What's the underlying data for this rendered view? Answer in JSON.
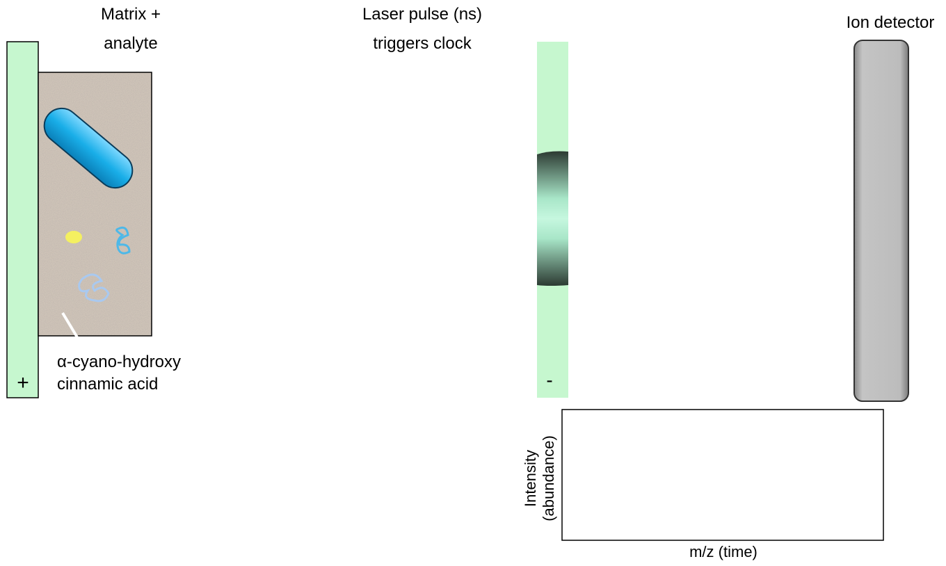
{
  "sample": {
    "title_lines": [
      "Matrix +",
      "analyte"
    ],
    "matrix_lines": [
      "α-cyano-hydroxy",
      "cinnamic acid"
    ],
    "anode_sign": "+"
  },
  "laser": {
    "title_lines": [
      "Laser pulse (ns)",
      "triggers clock"
    ],
    "grid_sign": "-"
  },
  "detector": {
    "title": "Ion detector"
  },
  "spectrum": {
    "y_label_lines": [
      "Intensity",
      "(abundance)"
    ],
    "x_label": "m/z (time)"
  }
}
